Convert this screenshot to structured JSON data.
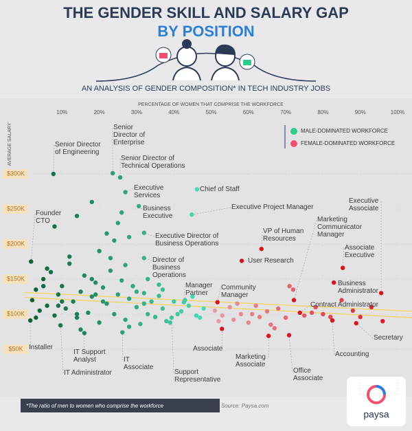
{
  "chart_data": {
    "type": "scatter",
    "title": "THE GENDER SKILL AND SALARY GAP",
    "title_line2": "BY POSITION",
    "subtitle": "AN ANALYSIS OF GENDER COMPOSITION* IN TECH INDUSTRY JOBS",
    "xlabel": "PERCENTAGE OF WOMEN THAT COMPRISE THE WORKFORCE",
    "ylabel": "AVERAGE SALARY",
    "xlim": [
      0,
      100
    ],
    "ylim": [
      0,
      370
    ],
    "xticks": [
      {
        "value": 10,
        "label": "10%"
      },
      {
        "value": 20,
        "label": "20%"
      },
      {
        "value": 30,
        "label": "30%"
      },
      {
        "value": 40,
        "label": "40%"
      },
      {
        "value": 50,
        "label": "50%"
      },
      {
        "value": 60,
        "label": "60%"
      },
      {
        "value": 70,
        "label": "70%"
      },
      {
        "value": 80,
        "label": "80%"
      },
      {
        "value": 90,
        "label": "90%"
      },
      {
        "value": 100,
        "label": "100%"
      }
    ],
    "yticks": [
      {
        "value": 50,
        "label": "$50K"
      },
      {
        "value": 100,
        "label": "$100K"
      },
      {
        "value": 150,
        "label": "$150K"
      },
      {
        "value": 200,
        "label": "$200K"
      },
      {
        "value": 250,
        "label": "$250K"
      },
      {
        "value": 300,
        "label": "$300K"
      }
    ],
    "grid": true,
    "legend": "upper right",
    "series": [
      {
        "name": "MALE-DOMINATED WORKFORCE",
        "color": "#2ecc8f",
        "shade_from": "#0f5a2e",
        "shade_to": "#4fe0bd",
        "x": [
          2,
          3,
          4,
          5,
          6,
          7,
          8,
          9,
          10,
          11,
          12,
          13,
          14,
          15,
          16,
          17,
          18,
          19,
          20,
          21,
          22,
          23,
          24,
          25,
          26,
          27,
          28,
          29,
          30,
          31,
          32,
          33,
          34,
          35,
          36,
          37,
          38,
          40,
          42,
          44,
          46,
          48,
          3,
          6,
          9,
          12,
          15,
          18,
          21,
          24,
          27,
          30,
          33,
          36,
          39,
          43,
          47,
          5,
          10,
          14,
          19,
          23,
          28,
          32,
          37,
          41,
          45,
          8,
          14,
          18,
          22,
          25,
          28,
          20,
          26
        ],
        "values": [
          120,
          135,
          105,
          150,
          112,
          160,
          98,
          128,
          140,
          108,
          172,
          118,
          95,
          132,
          155,
          102,
          125,
          145,
          88,
          138,
          115,
          180,
          100,
          128,
          148,
          92,
          122,
          140,
          110,
          86,
          130,
          150,
          118,
          96,
          126,
          108,
          90,
          118,
          104,
          112,
          98,
          108,
          95,
          165,
          112,
          182,
          78,
          150,
          118,
          205,
          170,
          132,
          100,
          142,
          88,
          120,
          95,
          140,
          118,
          100,
          128,
          162,
          82,
          115,
          135,
          100,
          125,
          225,
          240,
          260,
          215,
          230,
          210,
          190,
          245
        ]
      },
      {
        "name": "FEMALE-DOMINATED WORKFORCE",
        "color": "#f0506e",
        "shade_from": "#e8a0a8",
        "shade_to": "#d9141e",
        "x": [
          51,
          53,
          55,
          56,
          58,
          60,
          62,
          63,
          65,
          67,
          68,
          70,
          72,
          75,
          78,
          80,
          82,
          85,
          88,
          90,
          93,
          96,
          52,
          57,
          61,
          66,
          71,
          77
        ],
        "values": [
          105,
          98,
          110,
          92,
          100,
          88,
          112,
          96,
          104,
          80,
          108,
          95,
          135,
          98,
          110,
          100,
          96,
          120,
          105,
          96,
          110,
          90,
          90,
          115,
          100,
          85,
          140,
          102
        ]
      }
    ],
    "labeled_points": [
      {
        "label": "Senior Director of Engineering",
        "x": 7.7,
        "y": 300
      },
      {
        "label": "Senior Director of Enterprise",
        "x": 23.6,
        "y": 301
      },
      {
        "label": "Senior Director of Technical Operations",
        "x": 25.6,
        "y": 295
      },
      {
        "label": "Executive Services",
        "x": 27,
        "y": 274
      },
      {
        "label": "Business Executive",
        "x": 30.6,
        "y": 254
      },
      {
        "label": "Chief of Staff",
        "x": 46.2,
        "y": 278
      },
      {
        "label": "Executive Project Manager",
        "x": 44.8,
        "y": 242
      },
      {
        "label": "Executive Director of Business Operations",
        "x": 32,
        "y": 216
      },
      {
        "label": "Director of Business Operations",
        "x": 32,
        "y": 180
      },
      {
        "label": "Founder CTO",
        "x": 1.7,
        "y": 175
      },
      {
        "label": "VP of Human Resources",
        "x": 63.5,
        "y": 193
      },
      {
        "label": "User Research",
        "x": 58.2,
        "y": 176
      },
      {
        "label": "Marketing Communicator Manager",
        "x": 72.2,
        "y": 120
      },
      {
        "label": "Executive Associate",
        "x": 95.6,
        "y": 130
      },
      {
        "label": "Associate Executive",
        "x": 85.3,
        "y": 166
      },
      {
        "label": "Business Administrator",
        "x": 82.9,
        "y": 145
      },
      {
        "label": "Contract Administrator",
        "x": 73.8,
        "y": 102
      },
      {
        "label": "Secretary",
        "x": 88.9,
        "y": 87
      },
      {
        "label": "Accounting",
        "x": 82.5,
        "y": 91
      },
      {
        "label": "Office Associate",
        "x": 70.9,
        "y": 70
      },
      {
        "label": "Marketing Associate",
        "x": 65.4,
        "y": 69
      },
      {
        "label": "Associate",
        "x": 52.9,
        "y": 79
      },
      {
        "label": "Community Manager",
        "x": 51.7,
        "y": 117
      },
      {
        "label": "Manager Partner",
        "x": 42.7,
        "y": 117
      },
      {
        "label": "Support Representative",
        "x": 39.4,
        "y": 95
      },
      {
        "label": "IT Associate",
        "x": 26.2,
        "y": 74
      },
      {
        "label": "IT Support Analyst",
        "x": 16,
        "y": 73
      },
      {
        "label": "IT Administrator",
        "x": 9.6,
        "y": 84
      },
      {
        "label": "Installer",
        "x": 1.5,
        "y": 91
      }
    ],
    "trend_lines": [
      {
        "color": "#f4d35e",
        "x": [
          0,
          100
        ],
        "values": [
          131,
          105
        ]
      },
      {
        "color": "#f4d35e",
        "x": [
          0,
          100
        ],
        "values": [
          124,
          96
        ]
      }
    ],
    "footnote": "*The ratio of men to women who comprise the workforce",
    "source": "Source: Paysa.com",
    "brand": "paysa"
  }
}
